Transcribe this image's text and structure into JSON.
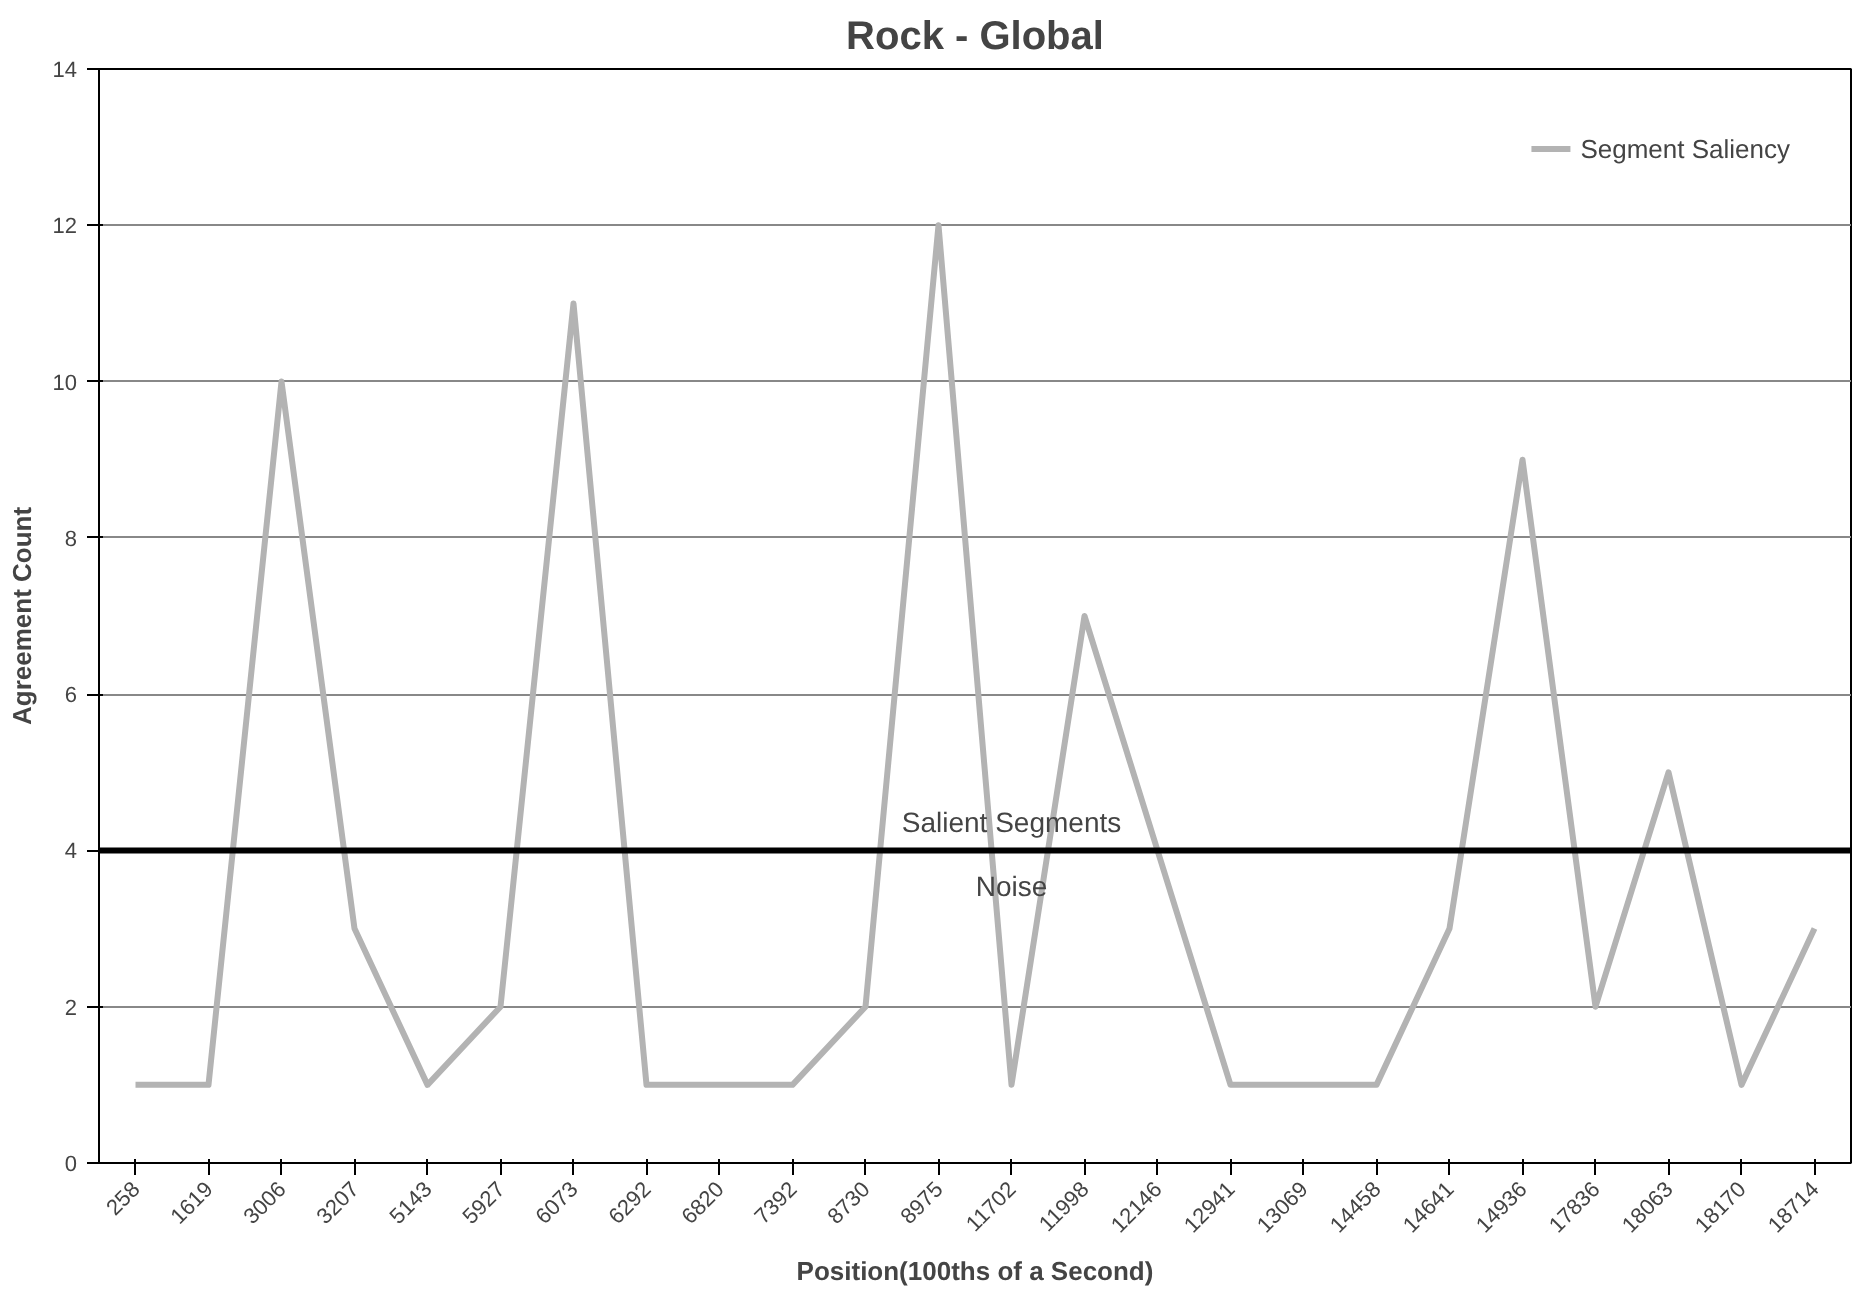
{
  "chart_data": {
    "type": "line",
    "title": "Rock - Global",
    "xlabel": "Position(100ths of a Second)",
    "ylabel": "Agreement Count",
    "categories": [
      "258",
      "1619",
      "3006",
      "3207",
      "5143",
      "5927",
      "6073",
      "6292",
      "6820",
      "7392",
      "8730",
      "8975",
      "11702",
      "11998",
      "12146",
      "12941",
      "13069",
      "14458",
      "14641",
      "14936",
      "17836",
      "18063",
      "18170",
      "18714"
    ],
    "series": [
      {
        "name": "Segment Saliency",
        "color": "#b3b3b3",
        "values": [
          1,
          1,
          10,
          3,
          1,
          2,
          11,
          1,
          1,
          1,
          2,
          12,
          1,
          7,
          4,
          1,
          1,
          1,
          3,
          9,
          2,
          5,
          1,
          3
        ]
      }
    ],
    "ylim": [
      0,
      14
    ],
    "yticks": [
      0,
      2,
      4,
      6,
      8,
      10,
      12,
      14
    ],
    "ref_lines": [
      {
        "axis": "y",
        "value": 4,
        "label": "Salient Segments",
        "color": "#000000"
      }
    ],
    "annotations": [
      "Noise"
    ],
    "grid": "y",
    "legend": "top right",
    "marker": "none",
    "line_style": "solid"
  }
}
